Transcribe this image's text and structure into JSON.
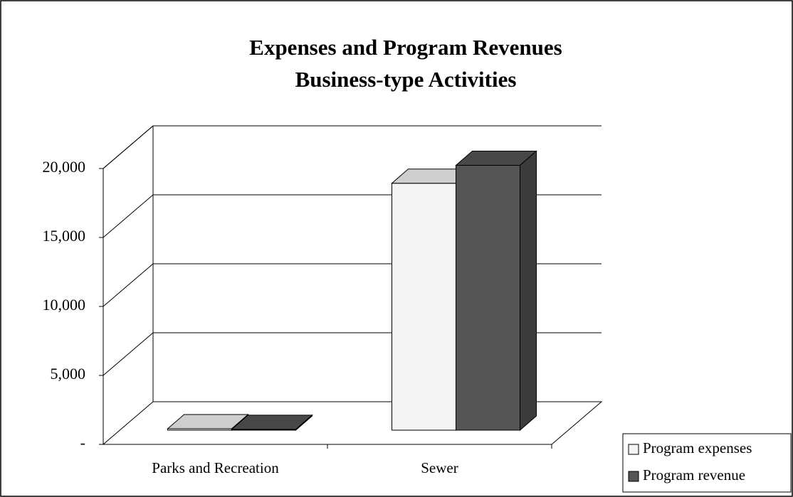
{
  "chart_data": {
    "type": "bar3d",
    "title": "Expenses and Program Revenues",
    "subtitle": "Business-type Activities",
    "categories": [
      "Parks and Recreation",
      "Sewer"
    ],
    "series": [
      {
        "name": "Program expenses",
        "color": "#f4f4f4",
        "values": [
          100,
          17900
        ]
      },
      {
        "name": "Program revenue",
        "color": "#555555",
        "values": [
          60,
          19200
        ]
      }
    ],
    "ylim": [
      0,
      20000
    ],
    "yticks": [
      {
        "value": 0,
        "label": "-"
      },
      {
        "value": 5000,
        "label": "5,000"
      },
      {
        "value": 10000,
        "label": "10,000"
      },
      {
        "value": 15000,
        "label": "15,000"
      },
      {
        "value": 20000,
        "label": "20,000"
      }
    ],
    "grid": true,
    "legend": "bottom-right"
  }
}
